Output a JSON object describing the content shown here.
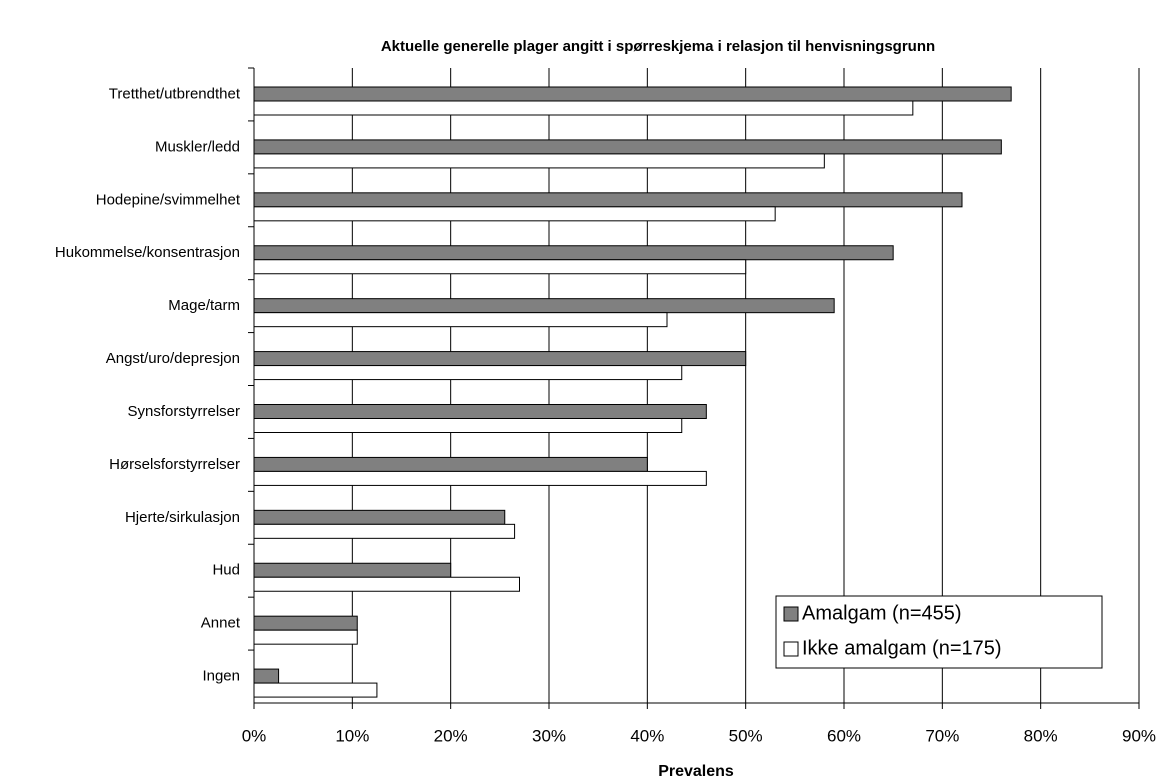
{
  "chart_data": {
    "type": "barh",
    "title": "Aktuelle generelle plager angitt i spørreskjema i relasjon til henvisningsgrunn",
    "xlabel": "Prevalens",
    "categories": [
      "Tretthet/utbrendthet",
      "Muskler/ledd",
      "Hodepine/svimmelhet",
      "Hukommelse/konsentrasjon",
      "Mage/tarm",
      "Angst/uro/depresjon",
      "Synsforstyrrelser",
      "Hørselsforstyrrelser",
      "Hjerte/sirkulasjon",
      "Hud",
      "Annet",
      "Ingen"
    ],
    "series": [
      {
        "name": "Amalgam (n=455)",
        "color": "#808080",
        "values": [
          77,
          76,
          72,
          65,
          59,
          50,
          46,
          40,
          25.5,
          20,
          10.5,
          2.5
        ]
      },
      {
        "name": "Ikke amalgam (n=175)",
        "color": "#ffffff",
        "values": [
          67,
          58,
          53,
          50,
          42,
          43.5,
          43.5,
          46,
          26.5,
          27,
          10.5,
          12.5
        ]
      }
    ],
    "xlim": [
      0,
      90
    ],
    "xticks": [
      {
        "value": 0,
        "label": "0%"
      },
      {
        "value": 10,
        "label": "10%"
      },
      {
        "value": 20,
        "label": "20%"
      },
      {
        "value": 30,
        "label": "30%"
      },
      {
        "value": 40,
        "label": "40%"
      },
      {
        "value": 50,
        "label": "50%"
      },
      {
        "value": 60,
        "label": "60%"
      },
      {
        "value": 70,
        "label": "70%"
      },
      {
        "value": 80,
        "label": "80%"
      },
      {
        "value": 90,
        "label": "90%"
      }
    ],
    "grid": true,
    "legend": "lower right"
  }
}
